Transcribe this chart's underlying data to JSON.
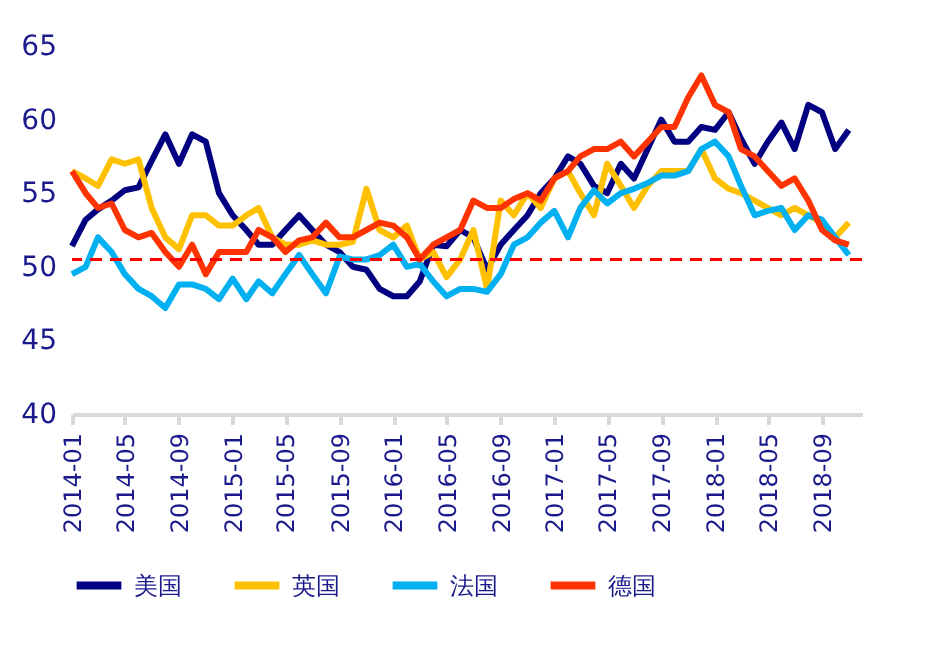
{
  "chart_data": {
    "type": "line",
    "x": [
      "2014-01",
      "2014-02",
      "2014-03",
      "2014-04",
      "2014-05",
      "2014-06",
      "2014-07",
      "2014-08",
      "2014-09",
      "2014-10",
      "2014-11",
      "2014-12",
      "2015-01",
      "2015-02",
      "2015-03",
      "2015-04",
      "2015-05",
      "2015-06",
      "2015-07",
      "2015-08",
      "2015-09",
      "2015-10",
      "2015-11",
      "2015-12",
      "2016-01",
      "2016-02",
      "2016-03",
      "2016-04",
      "2016-05",
      "2016-06",
      "2016-07",
      "2016-08",
      "2016-09",
      "2016-10",
      "2016-11",
      "2016-12",
      "2017-01",
      "2017-02",
      "2017-03",
      "2017-04",
      "2017-05",
      "2017-06",
      "2017-07",
      "2017-08",
      "2017-09",
      "2017-10",
      "2017-11",
      "2017-12",
      "2018-01",
      "2018-02",
      "2018-03",
      "2018-04",
      "2018-05",
      "2018-06",
      "2018-07",
      "2018-08",
      "2018-09",
      "2018-10",
      "2018-11"
    ],
    "series": [
      {
        "name": "美国",
        "color": "#000080",
        "values": [
          51.4,
          53.2,
          53.9,
          54.5,
          55.2,
          55.4,
          57.2,
          59.0,
          57.0,
          59.0,
          58.5,
          55.0,
          53.5,
          52.5,
          51.5,
          51.5,
          52.5,
          53.5,
          52.5,
          51.5,
          51.0,
          50.0,
          49.8,
          48.5,
          48.0,
          48.0,
          49.0,
          51.5,
          51.4,
          52.5,
          52.0,
          49.8,
          51.5,
          52.5,
          53.5,
          55.0,
          56.0,
          57.5,
          57.0,
          55.5,
          55.0,
          57.0,
          56.0,
          58.0,
          60.0,
          58.5,
          58.5,
          59.5,
          59.3,
          60.5,
          58.7,
          57.0,
          58.5,
          59.8,
          58.0,
          61.0,
          60.5,
          58.0,
          59.3
        ]
      },
      {
        "name": "英国",
        "color": "#ffc000",
        "values": [
          56.5,
          56.0,
          55.5,
          57.3,
          57.0,
          57.3,
          54.0,
          52.0,
          51.2,
          53.5,
          53.5,
          52.8,
          52.8,
          53.5,
          54.0,
          52.0,
          51.5,
          51.5,
          51.8,
          51.5,
          51.5,
          51.7,
          55.3,
          52.5,
          52.0,
          52.8,
          50.5,
          51.0,
          49.3,
          50.5,
          52.5,
          48.5,
          54.5,
          53.5,
          55.0,
          54.0,
          56.0,
          56.5,
          55.0,
          53.5,
          57.0,
          55.5,
          54.0,
          55.5,
          56.5,
          56.5,
          56.5,
          58.0,
          56.0,
          55.3,
          55.0,
          54.5,
          54.0,
          53.5,
          54.0,
          53.5,
          53.0,
          52.0,
          53.0
        ]
      },
      {
        "name": "法国",
        "color": "#00b0f0",
        "values": [
          49.5,
          50.0,
          52.0,
          51.0,
          49.5,
          48.5,
          48.0,
          47.2,
          48.8,
          48.8,
          48.5,
          47.8,
          49.2,
          47.8,
          49.0,
          48.2,
          49.5,
          50.8,
          49.5,
          48.2,
          50.7,
          50.5,
          50.5,
          50.8,
          51.5,
          50.0,
          50.2,
          49.0,
          48.0,
          48.5,
          48.5,
          48.3,
          49.5,
          51.5,
          52.0,
          53.0,
          53.8,
          52.0,
          54.0,
          55.2,
          54.3,
          55.0,
          55.3,
          55.7,
          56.2,
          56.2,
          56.5,
          58.0,
          58.5,
          57.5,
          55.5,
          53.5,
          53.8,
          54.0,
          52.5,
          53.5,
          53.2,
          52.0,
          50.8
        ]
      },
      {
        "name": "德国",
        "color": "#ff3300",
        "values": [
          56.5,
          55.0,
          54.0,
          54.3,
          52.5,
          52.0,
          52.3,
          51.0,
          50.0,
          51.5,
          49.5,
          51.0,
          51.0,
          51.0,
          52.5,
          52.0,
          51.0,
          51.8,
          52.0,
          53.0,
          52.0,
          52.0,
          52.5,
          53.0,
          52.8,
          52.0,
          50.5,
          51.5,
          52.0,
          52.5,
          54.5,
          54.0,
          54.0,
          54.6,
          55.0,
          54.5,
          56.0,
          56.5,
          57.5,
          58.0,
          58.0,
          58.5,
          57.5,
          58.5,
          59.5,
          59.5,
          61.5,
          63.0,
          61.0,
          60.5,
          58.0,
          57.5,
          56.5,
          55.5,
          56.0,
          54.5,
          52.5,
          51.8,
          51.5
        ]
      }
    ],
    "xlim": [
      "2014-01",
      "2018-12"
    ],
    "xticks": [
      "2014-01",
      "2014-05",
      "2014-09",
      "2015-01",
      "2015-05",
      "2015-09",
      "2016-01",
      "2016-05",
      "2016-09",
      "2017-01",
      "2017-05",
      "2017-09",
      "2018-01",
      "2018-05",
      "2018-09"
    ],
    "ylim": [
      40,
      65
    ],
    "yticks": [
      40,
      45,
      50,
      55,
      60,
      65
    ],
    "ref_lines": [
      {
        "axis": "y",
        "value": 50.5,
        "color": "#ff0000",
        "line_style": "dashed"
      }
    ],
    "grid": false,
    "legend": "bottom",
    "marker": "none",
    "line_style": "solid"
  }
}
